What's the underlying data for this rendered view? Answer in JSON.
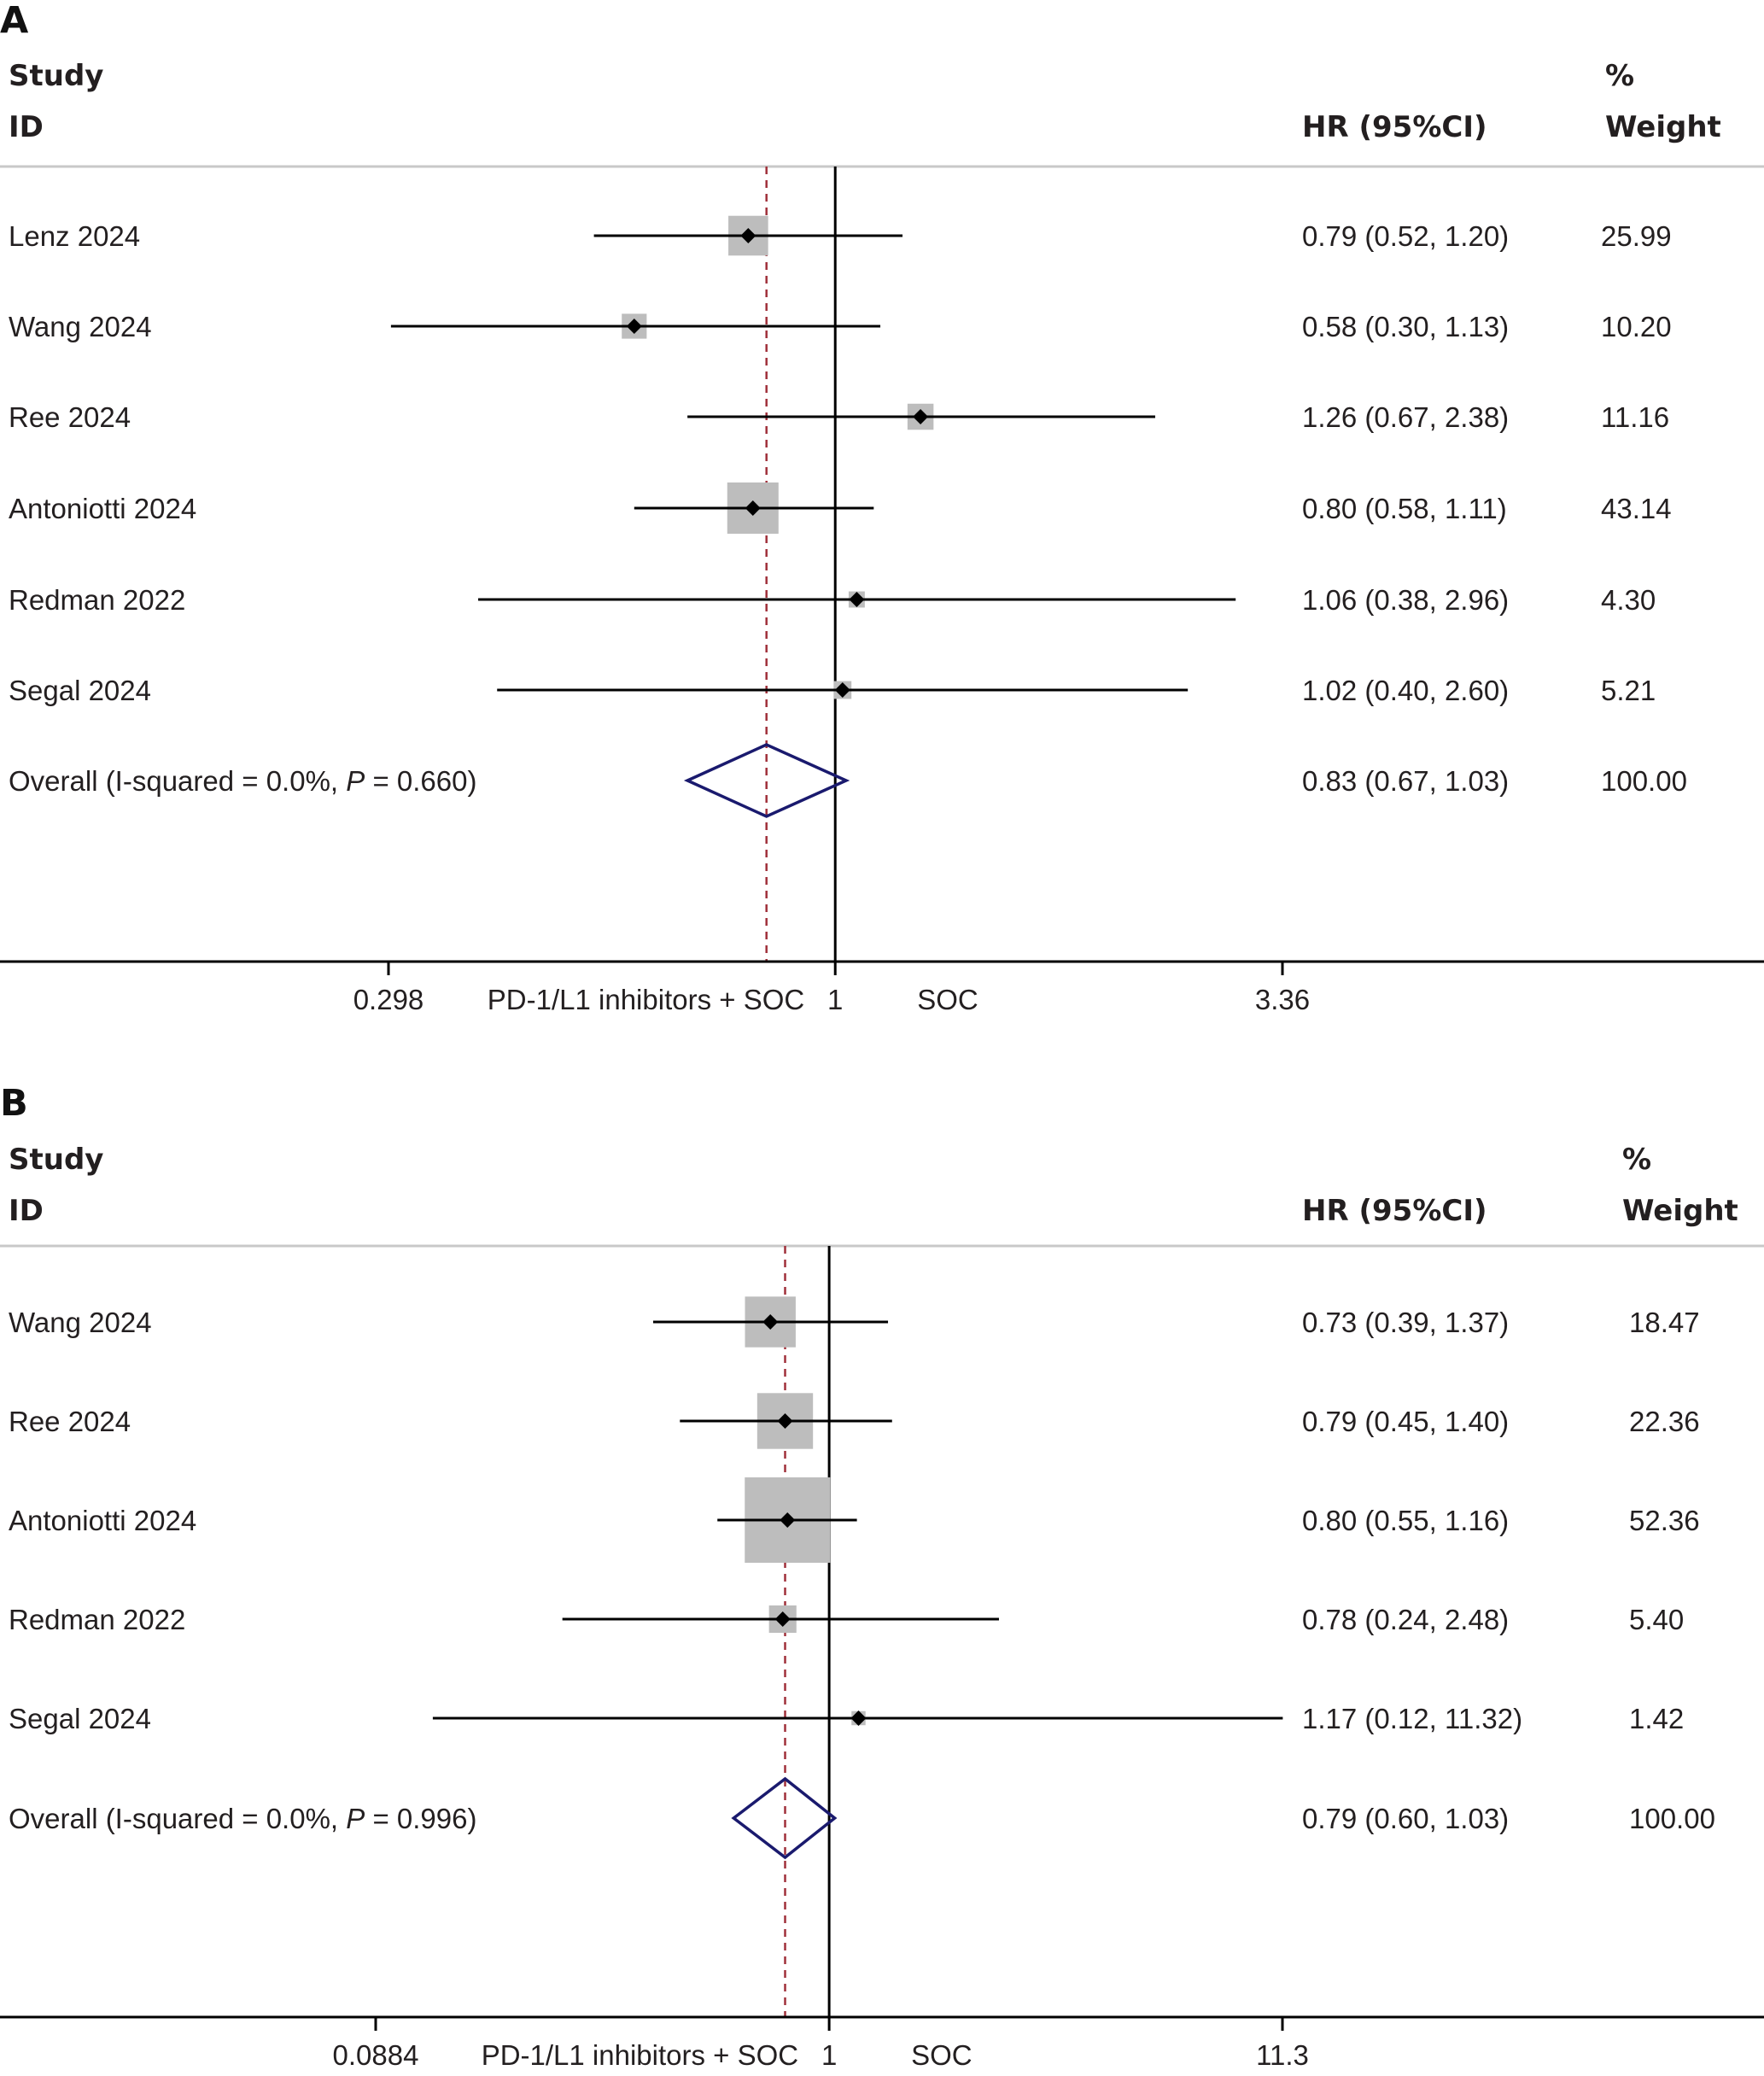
{
  "chart_data": [
    {
      "type": "forest",
      "panel_label": "A",
      "x_scale": "log",
      "xlim": [
        0.298,
        3.36
      ],
      "null_value": 1,
      "overall_value": 0.83,
      "headers": {
        "study_line1": "Study",
        "study_line2": "ID",
        "hr": "HR (95%CI)",
        "weight_line1": "%",
        "weight_line2": "Weight"
      },
      "x_ticks": [
        {
          "value": 0.298,
          "label": "0.298"
        },
        {
          "value": 1,
          "label": "1"
        },
        {
          "value": 3.36,
          "label": "3.36"
        }
      ],
      "favours_left": "PD-1/L1 inhibitors + SOC",
      "favours_right": "SOC",
      "studies": [
        {
          "name": "Lenz 2024",
          "hr": 0.79,
          "lower": 0.52,
          "upper": 1.2,
          "hr_text": "0.79 (0.52, 1.20)",
          "weight": "25.99",
          "weight_value": 25.99
        },
        {
          "name": "Wang 2024",
          "hr": 0.58,
          "lower": 0.3,
          "upper": 1.13,
          "hr_text": "0.58 (0.30, 1.13)",
          "weight": "10.20",
          "weight_value": 10.2
        },
        {
          "name": "Ree 2024",
          "hr": 1.26,
          "lower": 0.67,
          "upper": 2.38,
          "hr_text": "1.26 (0.67, 2.38)",
          "weight": "11.16",
          "weight_value": 11.16
        },
        {
          "name": "Antoniotti 2024",
          "hr": 0.8,
          "lower": 0.58,
          "upper": 1.11,
          "hr_text": "0.80 (0.58, 1.11)",
          "weight": "43.14",
          "weight_value": 43.14
        },
        {
          "name": "Redman 2022",
          "hr": 1.06,
          "lower": 0.38,
          "upper": 2.96,
          "hr_text": "1.06 (0.38, 2.96)",
          "weight": "4.30",
          "weight_value": 4.3
        },
        {
          "name": "Segal 2024",
          "hr": 1.02,
          "lower": 0.4,
          "upper": 2.6,
          "hr_text": "1.02 (0.40, 2.60)",
          "weight": "5.21",
          "weight_value": 5.21
        }
      ],
      "overall": {
        "label_prefix": "Overall  (I-squared = 0.0%, ",
        "p_symbol": "P",
        "label_suffix": " = 0.660)",
        "hr": 0.83,
        "lower": 0.67,
        "upper": 1.03,
        "hr_text": "0.83 (0.67, 1.03)",
        "weight": "100.00"
      }
    },
    {
      "type": "forest",
      "panel_label": "B",
      "x_scale": "log",
      "xlim": [
        0.0884,
        11.3
      ],
      "null_value": 1,
      "overall_value": 0.79,
      "headers": {
        "study_line1": "Study",
        "study_line2": "ID",
        "hr": "HR (95%CI)",
        "weight_line1": "%",
        "weight_line2": "Weight"
      },
      "x_ticks": [
        {
          "value": 0.0884,
          "label": "0.0884"
        },
        {
          "value": 1,
          "label": "1"
        },
        {
          "value": 11.3,
          "label": "11.3"
        }
      ],
      "favours_left": "PD-1/L1 inhibitors + SOC",
      "favours_right": "SOC",
      "studies": [
        {
          "name": "Wang 2024",
          "hr": 0.73,
          "lower": 0.39,
          "upper": 1.37,
          "hr_text": "0.73 (0.39, 1.37)",
          "weight": "18.47",
          "weight_value": 18.47
        },
        {
          "name": "Ree 2024",
          "hr": 0.79,
          "lower": 0.45,
          "upper": 1.4,
          "hr_text": "0.79 (0.45, 1.40)",
          "weight": "22.36",
          "weight_value": 22.36
        },
        {
          "name": "Antoniotti 2024",
          "hr": 0.8,
          "lower": 0.55,
          "upper": 1.16,
          "hr_text": "0.80 (0.55, 1.16)",
          "weight": "52.36",
          "weight_value": 52.36
        },
        {
          "name": "Redman 2022",
          "hr": 0.78,
          "lower": 0.24,
          "upper": 2.48,
          "hr_text": "0.78 (0.24, 2.48)",
          "weight": "5.40",
          "weight_value": 5.4
        },
        {
          "name": "Segal 2024",
          "hr": 1.17,
          "lower": 0.12,
          "upper": 11.32,
          "hr_text": "1.17 (0.12, 11.32)",
          "weight": "1.42",
          "weight_value": 1.42
        }
      ],
      "overall": {
        "label_prefix": "Overall  (I-squared = 0.0%, ",
        "p_symbol": "P",
        "label_suffix": " = 0.996)",
        "hr": 0.79,
        "lower": 0.6,
        "upper": 1.03,
        "hr_text": "0.79 (0.60, 1.03)",
        "weight": "100.00"
      }
    }
  ],
  "colors": {
    "text": "#231f20",
    "line": "#000000",
    "weight_box": "#bdbdbd",
    "overall_diamond": "#1a1a6e",
    "overall_dashed_line": "#a0303a",
    "separator": "#c8c8c8"
  }
}
